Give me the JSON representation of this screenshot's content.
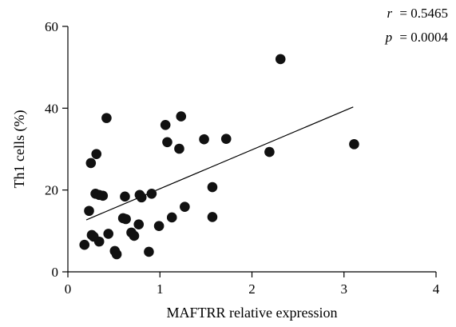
{
  "chart_data": {
    "type": "scatter",
    "xlabel": "MAFTRR relative expression",
    "ylabel": "Th1 cells (%)",
    "xlim": [
      0,
      4
    ],
    "ylim": [
      0,
      60
    ],
    "x_ticks": [
      0,
      1,
      2,
      3,
      4
    ],
    "y_ticks": [
      0,
      20,
      40,
      60
    ],
    "x_tick_labels": [
      "0",
      "1",
      "2",
      "3",
      "4"
    ],
    "y_tick_labels": [
      "0",
      "20",
      "40",
      "60"
    ],
    "grid": false,
    "annotations": {
      "r_label": "r",
      "r_value": "= 0.5465",
      "p_label": "p",
      "p_value": "= 0.0004"
    },
    "trendline": {
      "x": [
        0.2,
        3.1
      ],
      "y": [
        12.7,
        40.3
      ]
    },
    "points": [
      {
        "x": 0.18,
        "y": 6.6
      },
      {
        "x": 0.23,
        "y": 14.9
      },
      {
        "x": 0.25,
        "y": 26.6
      },
      {
        "x": 0.26,
        "y": 9.0
      },
      {
        "x": 0.28,
        "y": 8.6
      },
      {
        "x": 0.3,
        "y": 19.1
      },
      {
        "x": 0.31,
        "y": 28.8
      },
      {
        "x": 0.34,
        "y": 18.8
      },
      {
        "x": 0.34,
        "y": 7.4
      },
      {
        "x": 0.38,
        "y": 18.6
      },
      {
        "x": 0.42,
        "y": 37.6
      },
      {
        "x": 0.44,
        "y": 9.3
      },
      {
        "x": 0.51,
        "y": 5.1
      },
      {
        "x": 0.53,
        "y": 4.3
      },
      {
        "x": 0.6,
        "y": 13.1
      },
      {
        "x": 0.62,
        "y": 18.4
      },
      {
        "x": 0.63,
        "y": 12.9
      },
      {
        "x": 0.69,
        "y": 9.6
      },
      {
        "x": 0.72,
        "y": 8.8
      },
      {
        "x": 0.77,
        "y": 11.6
      },
      {
        "x": 0.78,
        "y": 18.8
      },
      {
        "x": 0.8,
        "y": 18.2
      },
      {
        "x": 0.88,
        "y": 4.9
      },
      {
        "x": 0.91,
        "y": 19.1
      },
      {
        "x": 0.99,
        "y": 11.2
      },
      {
        "x": 1.06,
        "y": 35.9
      },
      {
        "x": 1.08,
        "y": 31.7
      },
      {
        "x": 1.13,
        "y": 13.3
      },
      {
        "x": 1.21,
        "y": 30.1
      },
      {
        "x": 1.23,
        "y": 38.0
      },
      {
        "x": 1.27,
        "y": 15.9
      },
      {
        "x": 1.48,
        "y": 32.4
      },
      {
        "x": 1.57,
        "y": 20.7
      },
      {
        "x": 1.57,
        "y": 13.4
      },
      {
        "x": 1.72,
        "y": 32.5
      },
      {
        "x": 2.19,
        "y": 29.3
      },
      {
        "x": 2.31,
        "y": 52.0
      },
      {
        "x": 3.11,
        "y": 31.2
      }
    ]
  }
}
